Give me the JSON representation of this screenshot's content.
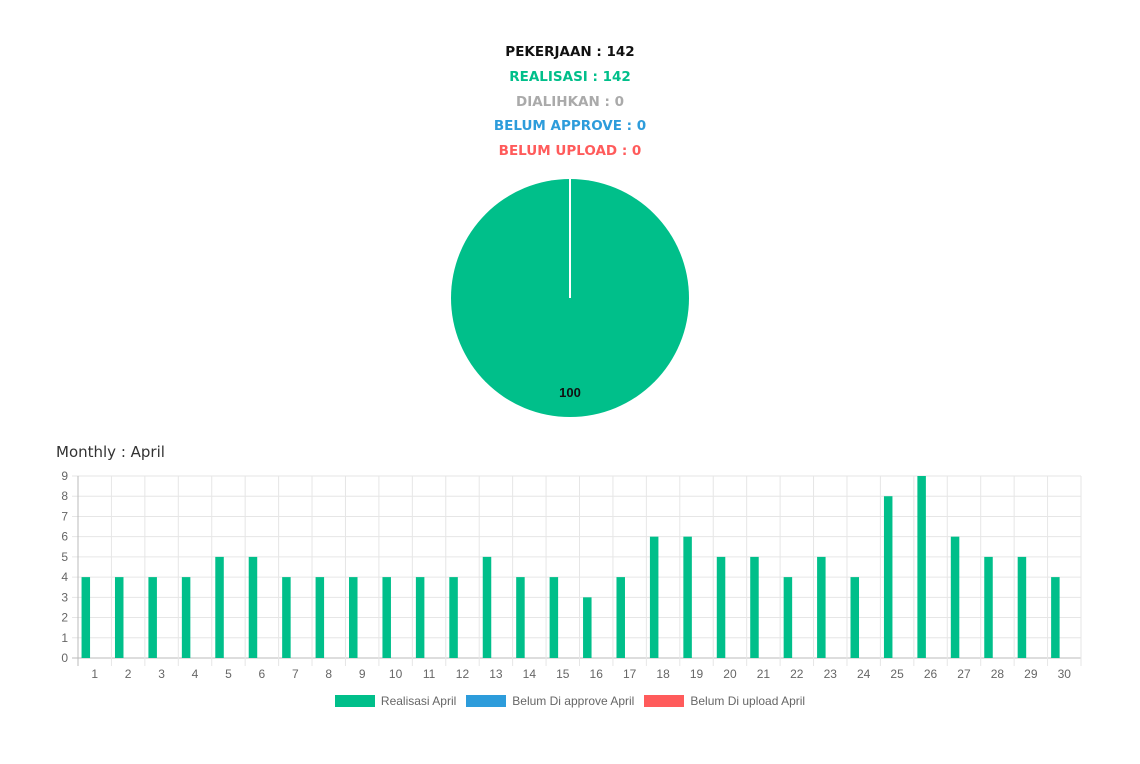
{
  "summary": {
    "pekerjaan": "PEKERJAAN : 142",
    "realisasi": "REALISASI : 142",
    "dialihkan": "DIALIHKAN : 0",
    "belum_approve": "BELUM APPROVE : 0",
    "belum_upload": "BELUM UPLOAD : 0"
  },
  "colors": {
    "realisasi": "#00bf8a",
    "dialihkan": "#aaaaaa",
    "belum_approve": "#2d9cdb",
    "belum_upload": "#ff5b5b",
    "pekerjaan": "#111111"
  },
  "monthly": {
    "title": "Monthly : April"
  },
  "chart_data": [
    {
      "type": "pie",
      "values": [
        100
      ],
      "data_labels": [
        "100"
      ]
    },
    {
      "type": "bar",
      "categories": [
        "1",
        "2",
        "3",
        "4",
        "5",
        "6",
        "7",
        "8",
        "9",
        "10",
        "11",
        "12",
        "13",
        "14",
        "15",
        "16",
        "17",
        "18",
        "19",
        "20",
        "21",
        "22",
        "23",
        "24",
        "25",
        "26",
        "27",
        "28",
        "29",
        "30"
      ],
      "series": [
        {
          "name": "Realisasi April",
          "color": "#00bf8a",
          "values": [
            4,
            4,
            4,
            4,
            5,
            5,
            4,
            4,
            4,
            4,
            4,
            4,
            5,
            4,
            4,
            3,
            4,
            6,
            6,
            5,
            5,
            4,
            5,
            4,
            8,
            9,
            6,
            5,
            5,
            4
          ]
        },
        {
          "name": "Belum Di approve April",
          "color": "#2d9cdb",
          "values": [
            0,
            0,
            0,
            0,
            0,
            0,
            0,
            0,
            0,
            0,
            0,
            0,
            0,
            0,
            0,
            0,
            0,
            0,
            0,
            0,
            0,
            0,
            0,
            0,
            0,
            0,
            0,
            0,
            0,
            0
          ]
        },
        {
          "name": "Belum Di upload April",
          "color": "#ff5b5b",
          "values": [
            0,
            0,
            0,
            0,
            0,
            0,
            0,
            0,
            0,
            0,
            0,
            0,
            0,
            0,
            0,
            0,
            0,
            0,
            0,
            0,
            0,
            0,
            0,
            0,
            0,
            0,
            0,
            0,
            0,
            0
          ]
        }
      ],
      "ylim": [
        0,
        9
      ],
      "yticks": [
        "0",
        "1",
        "2",
        "3",
        "4",
        "5",
        "6",
        "7",
        "8",
        "9"
      ],
      "grid": true,
      "legend": "bottom"
    }
  ]
}
